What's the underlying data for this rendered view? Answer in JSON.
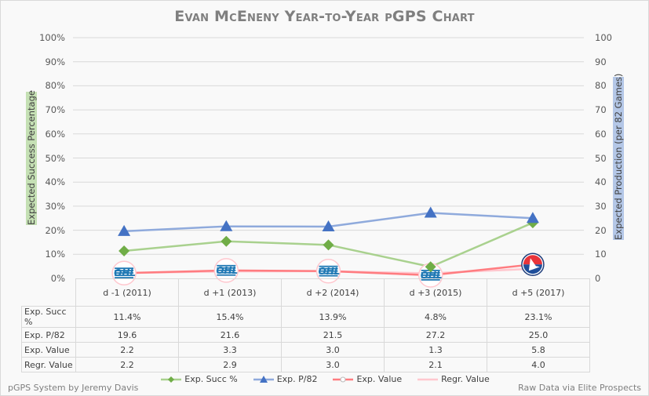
{
  "chart_data": {
    "type": "line",
    "title": "Evan McEneny Year-to-Year pGPS Chart",
    "categories": [
      "d -1 (2011)",
      "d +1 (2013)",
      "d +2 (2014)",
      "d +3 (2015)",
      "d +5 (2017)"
    ],
    "y_left": {
      "label": "Expected Success Percentage",
      "range": [
        0,
        100
      ],
      "ticks": [
        "0%",
        "10%",
        "20%",
        "30%",
        "40%",
        "50%",
        "60%",
        "70%",
        "80%",
        "90%",
        "100%"
      ]
    },
    "y_right": {
      "label": "Expected Production (per 82 Games)",
      "range": [
        0,
        100
      ],
      "ticks": [
        "0",
        "10",
        "20",
        "30",
        "40",
        "50",
        "60",
        "70",
        "80",
        "90",
        "100"
      ]
    },
    "grid": true,
    "legend_position": "bottom",
    "series": [
      {
        "name": "Exp. Succ %",
        "axis": "left",
        "color": "#70ad47",
        "line_color": "#a9d18e",
        "marker": "diamond",
        "values": [
          11.4,
          15.4,
          13.9,
          4.8,
          23.1
        ],
        "labels": [
          "11.4%",
          "15.4%",
          "13.9%",
          "4.8%",
          "23.1%"
        ]
      },
      {
        "name": "Exp. P/82",
        "axis": "right",
        "color": "#4472c4",
        "line_color": "#8faadc",
        "marker": "triangle",
        "values": [
          19.6,
          21.6,
          21.5,
          27.2,
          25.0
        ],
        "labels": [
          "19.6",
          "21.6",
          "21.5",
          "27.2",
          "25.0"
        ]
      },
      {
        "name": "Exp. Value",
        "axis": "right",
        "color": "#ff7c80",
        "line_color": "#ff7c80",
        "marker": "league-logo",
        "values": [
          2.2,
          3.3,
          3.0,
          1.3,
          5.8
        ],
        "labels": [
          "2.2",
          "3.3",
          "3.0",
          "1.3",
          "5.8"
        ]
      },
      {
        "name": "Regr. Value",
        "axis": "right",
        "color": "#ffc7ce",
        "line_color": "#ffc7ce",
        "marker": "none",
        "values": [
          2.2,
          2.9,
          3.0,
          2.1,
          4.0
        ],
        "labels": [
          "2.2",
          "2.9",
          "3.0",
          "2.1",
          "4.0"
        ]
      }
    ],
    "marker_logos": [
      "OHL",
      "OHL",
      "OHL",
      "OHL",
      "AHL"
    ]
  },
  "footer": {
    "left": "pGPS System by Jeremy Davis",
    "right": "Raw Data via Elite Prospects"
  }
}
